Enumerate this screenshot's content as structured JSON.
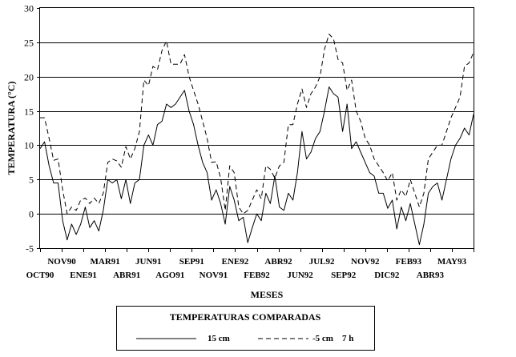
{
  "chart_data": {
    "type": "line",
    "xlabel": "MESES",
    "ylabel": "TEMPERATURA (°C)",
    "ylim": [
      -5,
      30
    ],
    "yticks": [
      30,
      25,
      20,
      15,
      10,
      5,
      0,
      -5
    ],
    "grid": "horizontal",
    "x_ticks_row1": [
      "NOV90",
      "MAR91",
      "JUN91",
      "SEP91",
      "ENE92",
      "ABR92",
      "JUL92",
      "NOV92",
      "FEB93",
      "MAY93"
    ],
    "x_ticks_row2": [
      "OCT90",
      "ENE91",
      "ABR91",
      "AGO91",
      "NOV91",
      "FEB92",
      "JUN92",
      "SEP92",
      "DIC92",
      "ABR93"
    ],
    "legend": {
      "title": "TEMPERATURAS COMPARADAS",
      "placement": "bottom",
      "entries": [
        "15 cm",
        "-5 cm    7 h"
      ]
    },
    "series": [
      {
        "name": "15 cm",
        "style": "solid",
        "color": "#000000",
        "values": [
          9.5,
          10.5,
          7,
          4.5,
          4.5,
          -1,
          -3.8,
          -1.5,
          -3,
          -1.5,
          1,
          -2,
          -1,
          -2.5,
          0.5,
          5,
          4.5,
          5,
          2.2,
          5,
          1.5,
          4.5,
          5,
          10,
          11.5,
          10,
          13,
          13.5,
          16,
          15.5,
          16,
          17,
          18,
          15,
          13,
          10,
          7.5,
          6,
          2,
          3.5,
          1.5,
          -1.5,
          4,
          2,
          -1,
          -0.5,
          -4.2,
          -2,
          0,
          -1,
          3,
          1.5,
          5.5,
          1,
          0.5,
          3,
          2,
          6,
          12,
          8,
          9,
          11,
          12,
          15,
          18.5,
          17.5,
          17,
          12,
          16,
          9.5,
          10.5,
          9,
          7.5,
          6,
          5.5,
          3,
          3,
          0.8,
          2,
          -2.2,
          1,
          -1,
          1.5,
          -1.5,
          -4.5,
          -1.5,
          3,
          4,
          4.5,
          2,
          5,
          8,
          10,
          11,
          12.5,
          11.5,
          14.5
        ]
      },
      {
        "name": "-5 cm    7 h",
        "style": "dashed",
        "color": "#000000",
        "values": [
          14,
          14,
          11,
          7.8,
          8,
          3.5,
          0,
          1,
          0.5,
          2,
          2.3,
          1.5,
          2.3,
          1.5,
          3,
          7.5,
          8,
          7.7,
          6.8,
          9.8,
          8,
          9.5,
          12,
          19.5,
          18.7,
          21.5,
          21,
          23.8,
          25.2,
          21.8,
          21.8,
          21.8,
          23.2,
          20,
          18,
          16,
          13.5,
          11,
          7.5,
          7.6,
          5.2,
          0.5,
          7,
          6,
          1,
          0,
          0.5,
          2,
          3.5,
          2.2,
          7,
          6.5,
          5.2,
          7,
          7.5,
          13,
          13,
          16,
          18.2,
          15.5,
          17.5,
          18.5,
          20,
          24,
          26.2,
          25.5,
          22.5,
          22,
          18,
          19.5,
          15,
          13.5,
          11,
          10,
          8,
          7,
          6,
          4.8,
          6,
          2,
          3.5,
          2.5,
          5,
          3,
          1,
          3,
          8,
          9,
          10,
          10,
          12,
          14,
          15.5,
          17,
          21.5,
          22,
          23.5
        ]
      }
    ]
  }
}
